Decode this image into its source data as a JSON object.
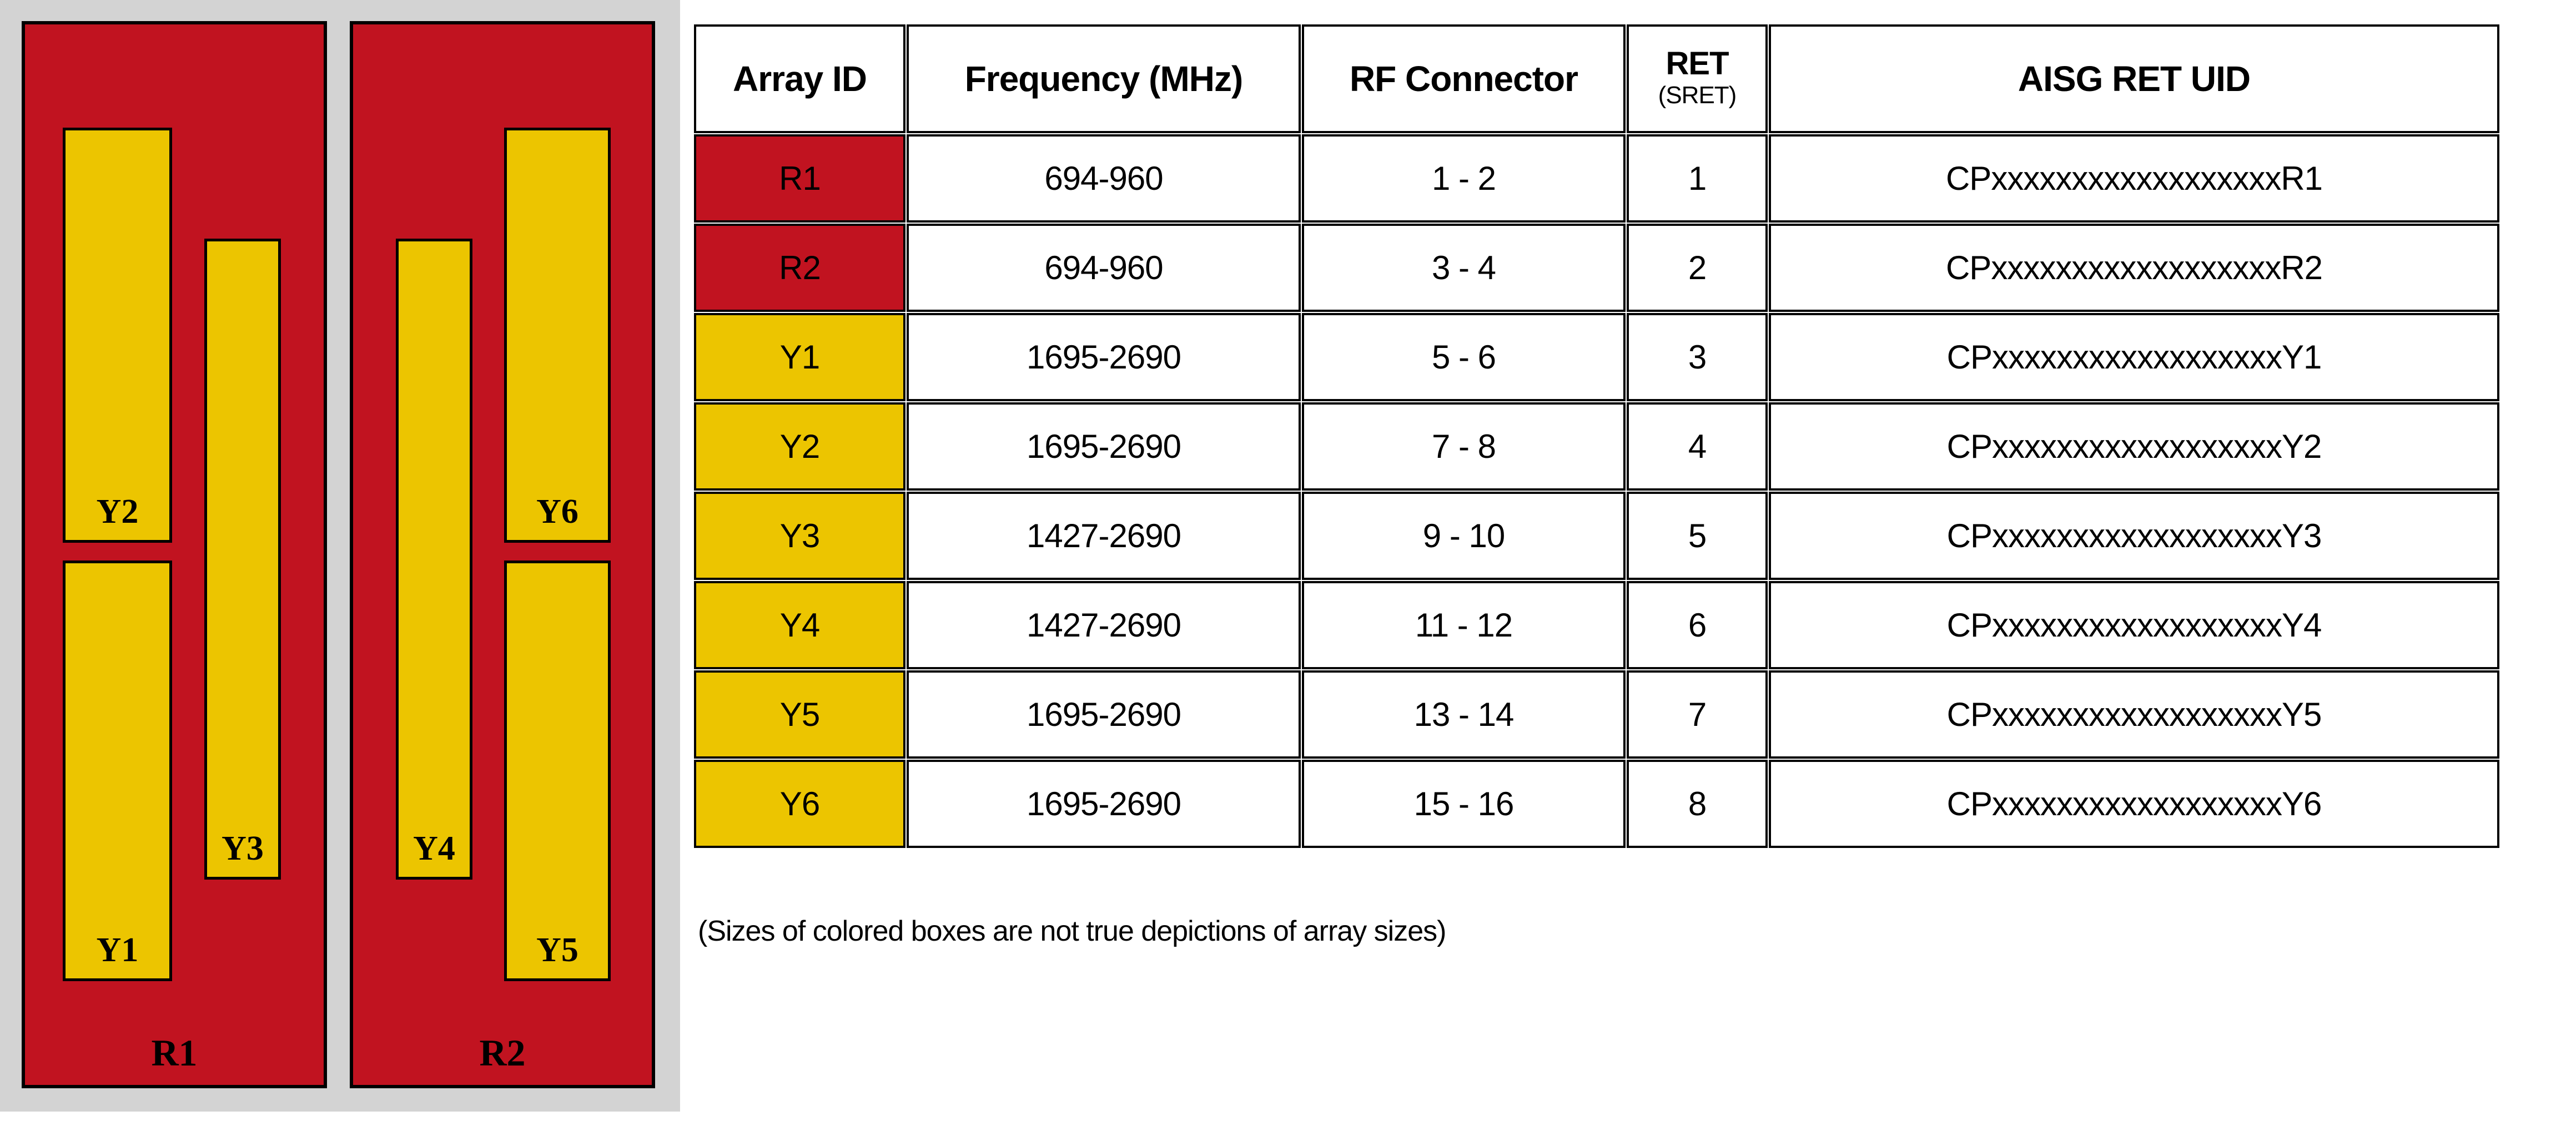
{
  "colors": {
    "panel_red": "#C11320",
    "array_yellow": "#ECC500",
    "diagram_background": "#D3D3D3",
    "border_black": "#000000"
  },
  "diagram": {
    "panels": [
      {
        "label": "R1",
        "color": "#C11320",
        "arrays": [
          {
            "label": "Y2",
            "color": "#ECC500"
          },
          {
            "label": "Y1",
            "color": "#ECC500"
          },
          {
            "label": "Y3",
            "color": "#ECC500"
          }
        ]
      },
      {
        "label": "R2",
        "color": "#C11320",
        "arrays": [
          {
            "label": "Y4",
            "color": "#ECC500"
          },
          {
            "label": "Y6",
            "color": "#ECC500"
          },
          {
            "label": "Y5",
            "color": "#ECC500"
          }
        ]
      }
    ]
  },
  "table": {
    "headers": {
      "array_id": "Array ID",
      "frequency": "Frequency (MHz)",
      "rf_connector": "RF Connector",
      "ret": "RET",
      "ret_sub": "(SRET)",
      "uid": "AISG RET UID"
    },
    "rows": [
      {
        "array_id": "R1",
        "color": "#C11320",
        "frequency": "694-960",
        "rf_connector": "1 - 2",
        "ret": "1",
        "uid": "CPxxxxxxxxxxxxxxxxxxR1"
      },
      {
        "array_id": "R2",
        "color": "#C11320",
        "frequency": "694-960",
        "rf_connector": "3 - 4",
        "ret": "2",
        "uid": "CPxxxxxxxxxxxxxxxxxxR2"
      },
      {
        "array_id": "Y1",
        "color": "#ECC500",
        "frequency": "1695-2690",
        "rf_connector": "5 - 6",
        "ret": "3",
        "uid": "CPxxxxxxxxxxxxxxxxxxY1"
      },
      {
        "array_id": "Y2",
        "color": "#ECC500",
        "frequency": "1695-2690",
        "rf_connector": "7 - 8",
        "ret": "4",
        "uid": "CPxxxxxxxxxxxxxxxxxxY2"
      },
      {
        "array_id": "Y3",
        "color": "#ECC500",
        "frequency": "1427-2690",
        "rf_connector": "9 - 10",
        "ret": "5",
        "uid": "CPxxxxxxxxxxxxxxxxxxY3"
      },
      {
        "array_id": "Y4",
        "color": "#ECC500",
        "frequency": "1427-2690",
        "rf_connector": "11 - 12",
        "ret": "6",
        "uid": "CPxxxxxxxxxxxxxxxxxxY4"
      },
      {
        "array_id": "Y5",
        "color": "#ECC500",
        "frequency": "1695-2690",
        "rf_connector": "13 - 14",
        "ret": "7",
        "uid": "CPxxxxxxxxxxxxxxxxxxY5"
      },
      {
        "array_id": "Y6",
        "color": "#ECC500",
        "frequency": "1695-2690",
        "rf_connector": "15 - 16",
        "ret": "8",
        "uid": "CPxxxxxxxxxxxxxxxxxxY6"
      }
    ]
  },
  "note": "(Sizes of colored boxes are not true depictions of array sizes)"
}
